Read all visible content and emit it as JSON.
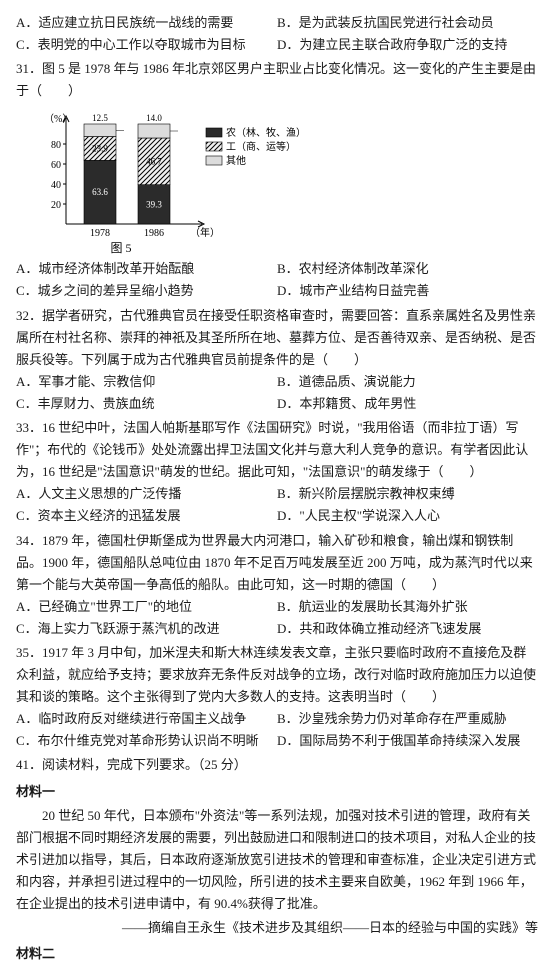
{
  "q30": {
    "optA": "A．适应建立抗日民族统一战线的需要",
    "optB": "B．是为武装反抗国民党进行社会动员",
    "optC": "C．表明党的中心工作以夺取城市为目标",
    "optD": "D．为建立民主联合政府争取广泛的支持"
  },
  "q31": {
    "stem": "31．图 5 是 1978 年与 1986 年北京郊区男户主职业占比变化情况。这一变化的产生主要是由于（　　）",
    "optA": "A．城市经济体制改革开始酝酿",
    "optB": "B．农村经济体制改革深化",
    "optC": "C．城乡之间的差异呈缩小趋势",
    "optD": "D．城市产业结构日益完善",
    "chart": {
      "yLabel": "（%）",
      "yTicks": [
        "80",
        "60",
        "40",
        "20"
      ],
      "categories": [
        "1978",
        "1986"
      ],
      "xUnit": "（年）",
      "caption": "图 5",
      "legend": {
        "farmer": "农（林、牧、渔）",
        "worker": "工（商、运等）",
        "other": "其他"
      },
      "series": {
        "1978": {
          "other": 12.5,
          "worker": 23.9,
          "farmer": 63.6
        },
        "1986": {
          "other": 14.0,
          "worker": 46.7,
          "farmer": 39.3
        }
      },
      "colors": {
        "farmer_fill": "#2b2b2b",
        "worker_fill": "url(#hatch)",
        "other_fill": "#dcdcdc",
        "axis": "#000000"
      }
    }
  },
  "q32": {
    "stem": "32．据学者研究，古代雅典官员在接受任职资格审查时，需要回答：直系亲属姓名及男性亲属所在村社名称、崇拜的神祇及其圣所所在地、墓葬方位、是否善待双亲、是否纳税、是否服兵役等。下列属于成为古代雅典官员前提条件的是（　　）",
    "optA": "A．军事才能、宗教信仰",
    "optB": "B．道德品质、演说能力",
    "optC": "C．丰厚财力、贵族血统",
    "optD": "D．本邦籍贯、成年男性"
  },
  "q33": {
    "stem": "33．16 世纪中叶，法国人帕斯基耶写作《法国研究》时说，\"我用俗语（而非拉丁语）写作\"；布代的《论钱币》处处流露出捍卫法国文化并与意大利人竞争的意识。有学者因此认为，16 世纪是\"法国意识\"萌发的世纪。据此可知，\"法国意识\"的萌发缘于（　　）",
    "optA": "A．人文主义思想的广泛传播",
    "optB": "B．新兴阶层摆脱宗教神权束缚",
    "optC": "C．资本主义经济的迅猛发展",
    "optD": "D．\"人民主权\"学说深入人心"
  },
  "q34": {
    "stem": "34．1879 年，德国杜伊斯堡成为世界最大内河港口，输入矿砂和粮食，输出煤和钢铁制品。1900 年，德国船队总吨位由 1870 年不足百万吨发展至近 200 万吨，成为蒸汽时代以来第一个能与大英帝国一争高低的船队。由此可知，这一时期的德国（　　）",
    "optA": "A．已经确立\"世界工厂\"的地位",
    "optB": "B．航运业的发展助长其海外扩张",
    "optC": "C．海上实力飞跃源于蒸汽机的改进",
    "optD": "D．共和政体确立推动经济飞速发展"
  },
  "q35": {
    "stem": "35．1917 年 3 月中旬，加米涅夫和斯大林连续发表文章，主张只要临时政府不直接危及群众利益，就应给予支持；要求放弃无条件反对战争的立场，改行对临时政府施加压力以迫使其和谈的策略。这个主张得到了党内大多数人的支持。这表明当时（　　）",
    "optA": "A．临时政府反对继续进行帝国主义战争",
    "optB": "B．沙皇残余势力仍对革命存在严重威胁",
    "optC": "C．布尔什维克党对革命形势认识尚不明晰",
    "optD": "D．国际局势不利于俄国革命持续深入发展"
  },
  "q41": {
    "title": "41．阅读材料，完成下列要求。（25 分）",
    "m1title": "材料一",
    "m1body": "20 世纪 50 年代，日本颁布\"外资法\"等一系列法规，加强对技术引进的管理，政府有关部门根据不同时期经济发展的需要，列出鼓励进口和限制进口的技术项目，对私人企业的技术引进加以指导，其后，日本政府逐渐放宽引进技术的管理和审查标准，企业决定引进方式和内容，并承担引进过程中的一切风险，所引进的技术主要来自欧美，1962 年到 1966 年，在企业提出的技术引进申请中，有 90.4%获得了批准。",
    "m1src": "——摘编自王永生《技术进步及其组织——日本的经验与中国的实践》等",
    "m2title": "材料二"
  }
}
